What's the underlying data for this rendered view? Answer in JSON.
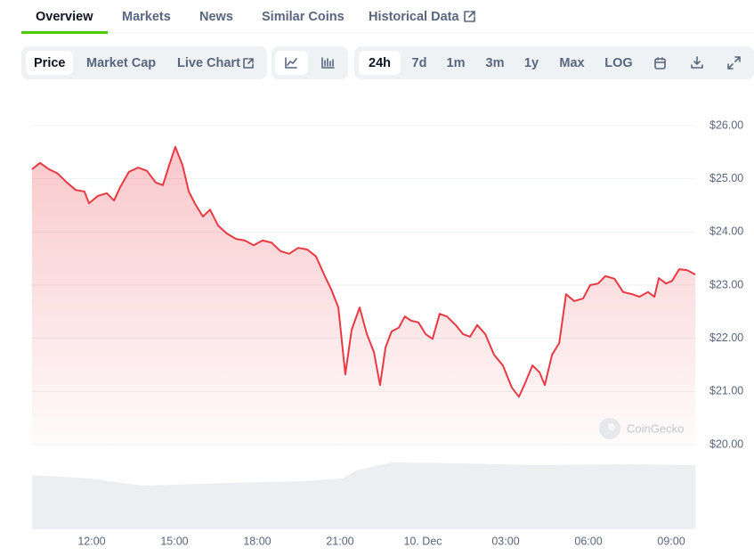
{
  "tabs": [
    "Overview",
    "Markets",
    "News",
    "Similar Coins",
    "Historical Data"
  ],
  "chart_buttons": [
    "Price",
    "Market Cap",
    "Live Chart"
  ],
  "range_buttons": [
    "24h",
    "7d",
    "1m",
    "3m",
    "1y",
    "Max",
    "LOG"
  ],
  "chart_data": {
    "type": "line",
    "watermark": "CoinGecko",
    "x": [
      9.84,
      10.13,
      10.45,
      10.77,
      11.1,
      11.42,
      11.74,
      11.9,
      12.23,
      12.55,
      12.81,
      13.03,
      13.35,
      13.68,
      14.0,
      14.32,
      14.58,
      14.81,
      15.03,
      15.29,
      15.52,
      15.77,
      16.03,
      16.29,
      16.58,
      16.9,
      17.23,
      17.55,
      17.87,
      18.19,
      18.52,
      18.84,
      19.16,
      19.48,
      19.81,
      20.13,
      20.45,
      20.68,
      20.94,
      21.19,
      21.42,
      21.71,
      21.97,
      22.23,
      22.45,
      22.65,
      22.87,
      23.13,
      23.35,
      23.58,
      23.84,
      24.1,
      24.35,
      24.61,
      24.87,
      25.19,
      25.45,
      25.71,
      25.97,
      26.26,
      26.58,
      26.9,
      27.23,
      27.48,
      27.71,
      27.97,
      28.23,
      28.42,
      28.68,
      28.94,
      29.19,
      29.48,
      29.81,
      30.06,
      30.35,
      30.61,
      30.94,
      31.26,
      31.58,
      31.84,
      32.16,
      32.39,
      32.55,
      32.81,
      33.03,
      33.29,
      33.58,
      33.87
    ],
    "series": [
      {
        "name": "Price",
        "color": "#ea3943",
        "values": [
          25.18,
          25.3,
          25.18,
          25.1,
          24.93,
          24.79,
          24.76,
          24.54,
          24.68,
          24.73,
          24.59,
          24.84,
          25.13,
          25.21,
          25.15,
          24.93,
          24.88,
          25.26,
          25.6,
          25.26,
          24.76,
          24.51,
          24.29,
          24.42,
          24.12,
          23.97,
          23.87,
          23.84,
          23.75,
          23.84,
          23.8,
          23.64,
          23.59,
          23.7,
          23.67,
          23.54,
          23.17,
          22.92,
          22.58,
          21.32,
          22.16,
          22.58,
          22.08,
          21.74,
          21.12,
          21.83,
          22.13,
          22.2,
          22.41,
          22.33,
          22.3,
          22.08,
          21.99,
          22.46,
          22.41,
          22.25,
          22.08,
          22.03,
          22.25,
          22.08,
          21.69,
          21.49,
          21.07,
          20.9,
          21.16,
          21.49,
          21.36,
          21.12,
          21.69,
          21.91,
          22.83,
          22.7,
          22.75,
          23.0,
          23.03,
          23.17,
          23.12,
          22.87,
          22.83,
          22.78,
          22.87,
          22.78,
          23.13,
          23.03,
          23.08,
          23.3,
          23.28,
          23.2
        ]
      }
    ],
    "xlim": [
      9.84,
      33.87
    ],
    "xticks": [
      {
        "value": 12,
        "label": "12:00"
      },
      {
        "value": 15,
        "label": "15:00"
      },
      {
        "value": 18,
        "label": "18:00"
      },
      {
        "value": 21,
        "label": "21:00"
      },
      {
        "value": 24,
        "label": "10. Dec"
      },
      {
        "value": 27,
        "label": "03:00"
      },
      {
        "value": 30,
        "label": "06:00"
      },
      {
        "value": 33,
        "label": "09:00"
      }
    ],
    "ylim": [
      20,
      26
    ],
    "yticks": [
      {
        "value": 20,
        "label": "$20.00"
      },
      {
        "value": 21,
        "label": "$21.00"
      },
      {
        "value": 22,
        "label": "$22.00"
      },
      {
        "value": 23,
        "label": "$23.00"
      },
      {
        "value": 24,
        "label": "$24.00"
      },
      {
        "value": 25,
        "label": "$25.00"
      },
      {
        "value": 26,
        "label": "$26.00"
      }
    ],
    "grid": true
  }
}
